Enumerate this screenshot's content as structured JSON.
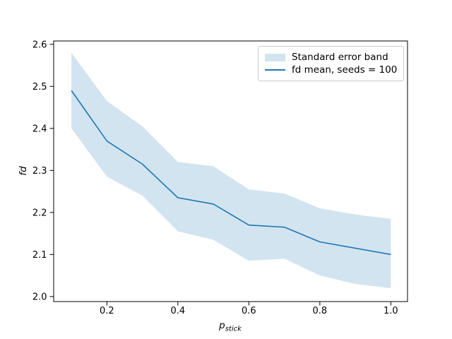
{
  "figure": {
    "background": "#ffffff"
  },
  "chart_data": {
    "type": "line",
    "title": "",
    "xlabel_base": "p",
    "xlabel_subscript": "stick",
    "ylabel": "fd",
    "x": [
      0.1,
      0.2,
      0.3,
      0.4,
      0.5,
      0.6,
      0.7,
      0.8,
      0.9,
      1.0
    ],
    "series": [
      {
        "name": "fd mean, seeds = 100",
        "values": [
          2.49,
          2.37,
          2.315,
          2.235,
          2.22,
          2.17,
          2.165,
          2.13,
          2.115,
          2.1
        ],
        "color": "#1f77b4",
        "line_width": 1.6
      }
    ],
    "band": {
      "name": "Standard error band",
      "upper": [
        2.58,
        2.465,
        2.405,
        2.32,
        2.31,
        2.255,
        2.245,
        2.21,
        2.195,
        2.185
      ],
      "lower": [
        2.4,
        2.285,
        2.24,
        2.155,
        2.135,
        2.085,
        2.09,
        2.05,
        2.03,
        2.02
      ],
      "color": "#d2e4f0"
    },
    "xlim": [
      0.05,
      1.047
    ],
    "ylim": [
      1.988,
      2.608
    ],
    "x_ticks": [
      0.2,
      0.4,
      0.6,
      0.8,
      1.0
    ],
    "x_tick_labels": [
      "0.2",
      "0.4",
      "0.6",
      "0.8",
      "1.0"
    ],
    "y_ticks": [
      2.0,
      2.1,
      2.2,
      2.3,
      2.4,
      2.5,
      2.6
    ],
    "y_tick_labels": [
      "2.0",
      "2.1",
      "2.2",
      "2.3",
      "2.4",
      "2.5",
      "2.6"
    ],
    "grid": false,
    "legend_position": "upper right"
  },
  "legend": {
    "items": [
      {
        "label": "Standard error band",
        "swatch": "patch"
      },
      {
        "label": "fd mean, seeds = 100",
        "swatch": "line"
      }
    ]
  },
  "colors": {
    "line": "#1f77b4",
    "band": "#d2e4f0",
    "spine": "#000000",
    "tick_text": "#000000",
    "legend_border": "#cccccc"
  }
}
